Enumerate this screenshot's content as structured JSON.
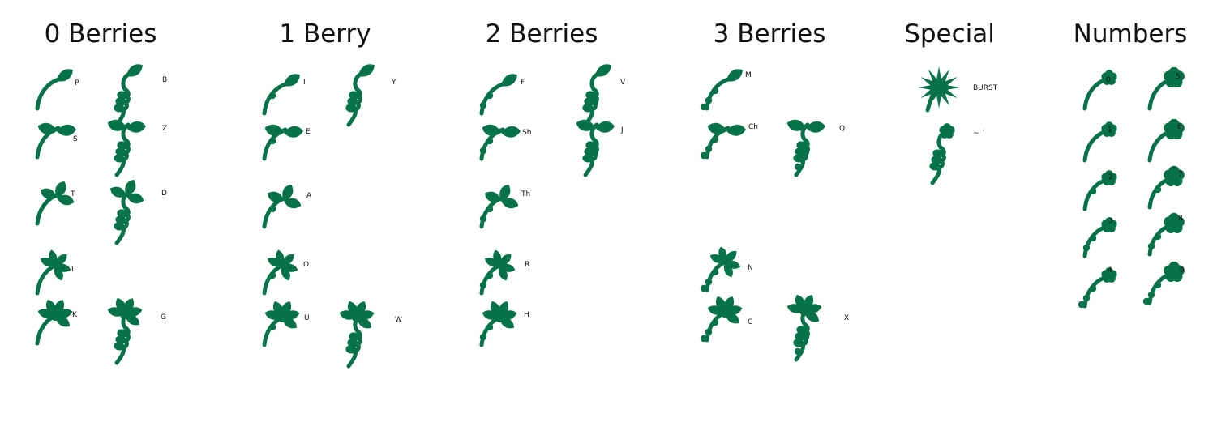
{
  "colors": {
    "ink": "#067247",
    "text": "#111111",
    "background": "#ffffff"
  },
  "columns": [
    {
      "title": "0 Berries",
      "glyphs": [
        {
          "label": "P",
          "icon": "sprout-leaf-icon"
        },
        {
          "label": "B",
          "icon": "sprout-leaf-curl-icon"
        },
        {
          "label": "S",
          "icon": "sprout-two-leaf-icon"
        },
        {
          "label": "Z",
          "icon": "sprout-two-leaf-curl-icon"
        },
        {
          "label": "T",
          "icon": "sprout-three-leaf-icon"
        },
        {
          "label": "D",
          "icon": "sprout-three-leaf-curl-icon"
        },
        {
          "label": "L",
          "icon": "sprout-star-icon"
        },
        {
          "label": "K",
          "icon": "sprout-five-leaf-icon"
        },
        {
          "label": "G",
          "icon": "sprout-five-leaf-curl-icon"
        }
      ]
    },
    {
      "title": "1 Berry",
      "glyphs": [
        {
          "label": "I",
          "icon": "sprout-leaf-berry-icon"
        },
        {
          "label": "Y",
          "icon": "sprout-leaf-curl-berry-icon"
        },
        {
          "label": "E",
          "icon": "sprout-two-leaf-berry-icon"
        },
        {
          "label": "A",
          "icon": "sprout-three-leaf-berry-icon"
        },
        {
          "label": "O",
          "icon": "sprout-star-berry-icon"
        },
        {
          "label": "U",
          "icon": "sprout-five-leaf-berry-icon"
        },
        {
          "label": "W",
          "icon": "sprout-five-leaf-curl-berry-icon"
        }
      ]
    },
    {
      "title": "2 Berries",
      "glyphs": [
        {
          "label": "F",
          "icon": "sprout-leaf-two-berry-icon"
        },
        {
          "label": "V",
          "icon": "sprout-leaf-curl-two-berry-icon"
        },
        {
          "label": "Sh",
          "icon": "sprout-two-leaf-two-berry-icon"
        },
        {
          "label": "J",
          "icon": "sprout-two-leaf-curl-two-berry-icon"
        },
        {
          "label": "Th",
          "icon": "sprout-three-leaf-two-berry-icon"
        },
        {
          "label": "R",
          "icon": "sprout-star-two-berry-icon"
        },
        {
          "label": "H",
          "icon": "sprout-five-leaf-two-berry-icon"
        }
      ]
    },
    {
      "title": "3 Berries",
      "glyphs": [
        {
          "label": "M",
          "icon": "sprout-leaf-three-berry-icon"
        },
        {
          "label": "Ch",
          "icon": "sprout-two-leaf-three-berry-icon"
        },
        {
          "label": "Q",
          "icon": "sprout-two-leaf-curl-three-berry-icon"
        },
        {
          "label": "N",
          "icon": "sprout-star-three-berry-icon"
        },
        {
          "label": "C",
          "icon": "sprout-five-leaf-three-berry-icon"
        },
        {
          "label": "X",
          "icon": "sprout-five-leaf-curl-three-berry-icon"
        }
      ]
    },
    {
      "title": "Special",
      "glyphs": [
        {
          "label": "BURST",
          "icon": "burst-icon"
        },
        {
          "label": "~ ´",
          "icon": "bloom-curl-icon"
        }
      ]
    },
    {
      "title": "Numbers",
      "glyphs": [
        {
          "label": "0",
          "icon": "bloom-icon"
        },
        {
          "label": "5",
          "icon": "big-bloom-icon"
        },
        {
          "label": "1",
          "icon": "bloom-icon"
        },
        {
          "label": "6",
          "icon": "big-bloom-icon"
        },
        {
          "label": "2",
          "icon": "bloom-berry-icon"
        },
        {
          "label": "7",
          "icon": "big-bloom-berry-icon"
        },
        {
          "label": "3",
          "icon": "bloom-two-berry-icon"
        },
        {
          "label": "8",
          "icon": "big-bloom-two-berry-icon"
        },
        {
          "label": "4",
          "icon": "bloom-three-berry-icon"
        },
        {
          "label": "9",
          "icon": "big-bloom-three-berry-icon"
        }
      ]
    }
  ]
}
